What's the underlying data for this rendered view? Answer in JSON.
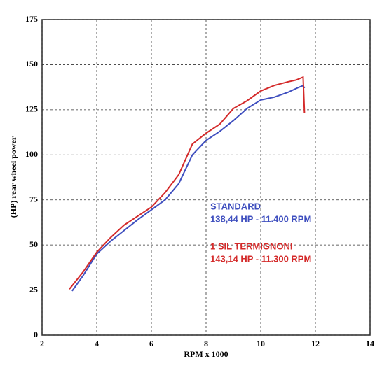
{
  "chart_data": {
    "type": "line",
    "x_label": "RPM x 1000",
    "y_label": "(HP) rear wheel power",
    "xlim": [
      2,
      14
    ],
    "xticks": [
      2,
      4,
      6,
      8,
      10,
      12,
      14
    ],
    "ylim": [
      0,
      175
    ],
    "yticks": [
      0,
      25,
      50,
      75,
      100,
      125,
      150,
      175
    ],
    "grid": true,
    "series": [
      {
        "name": "STANDARD",
        "color": "#3f4fbf",
        "x": [
          3.1,
          3.5,
          4.0,
          4.5,
          5.0,
          5.5,
          6.0,
          6.5,
          7.0,
          7.5,
          8.0,
          8.5,
          9.0,
          9.5,
          10.0,
          10.5,
          11.0,
          11.4,
          11.55,
          11.6
        ],
        "values": [
          24.5,
          33,
          45,
          52,
          58,
          64,
          69.5,
          75,
          84,
          100,
          108,
          113,
          119,
          125.7,
          130.4,
          132,
          134.7,
          137.5,
          138.4,
          137
        ]
      },
      {
        "name": "1 SIL TERMIGNONI",
        "color": "#d42a2a",
        "x": [
          3.0,
          3.5,
          4.0,
          4.5,
          5.0,
          5.5,
          6.0,
          6.5,
          7.0,
          7.5,
          8.0,
          8.5,
          9.0,
          9.5,
          10.0,
          10.5,
          11.0,
          11.3,
          11.55,
          11.6
        ],
        "values": [
          25.5,
          35,
          46,
          54,
          61,
          66,
          71,
          79,
          89,
          106,
          112,
          117,
          125.7,
          130,
          135.4,
          138.5,
          140.5,
          141.5,
          143.1,
          123
        ]
      }
    ],
    "annotations": [
      "138,44 HP - 11.400 RPM",
      "143,14 HP - 11.300 RPM"
    ]
  }
}
